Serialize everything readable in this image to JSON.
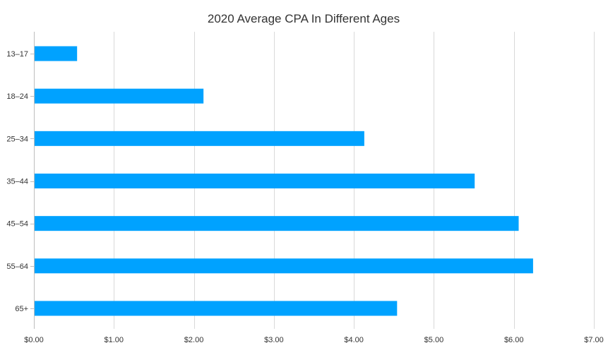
{
  "chart_data": {
    "type": "bar",
    "orientation": "horizontal",
    "title": "2020 Average CPA In Different Ages",
    "xlabel": "",
    "ylabel": "",
    "categories": [
      "13–17",
      "18–24",
      "25–34",
      "35–44",
      "45–54",
      "55–64",
      "65+"
    ],
    "values": [
      0.54,
      2.12,
      4.13,
      5.51,
      6.06,
      6.24,
      4.54
    ],
    "xlim": [
      0,
      7
    ],
    "x_ticks": [
      0,
      1,
      2,
      3,
      4,
      5,
      6,
      7
    ],
    "x_tick_labels": [
      "$0.00",
      "$1.00",
      "$2.00",
      "$3.00",
      "$4.00",
      "$5.00",
      "$6.00",
      "$7.00"
    ],
    "grid": "vertical",
    "legend": "none",
    "bar_color": "#00a2ff"
  }
}
